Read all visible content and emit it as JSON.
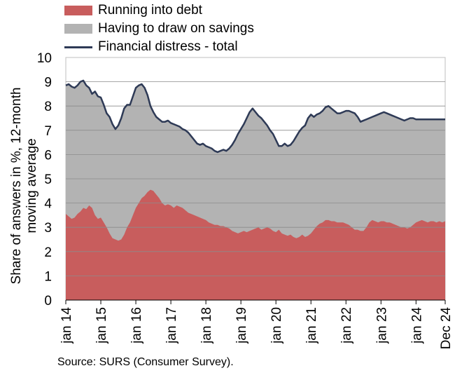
{
  "chart_data": {
    "type": "area",
    "ylabel": "Share of answers in %, 12-month moving average",
    "ylim": [
      0,
      10
    ],
    "yticks": [
      "0",
      "1",
      "2",
      "3",
      "4",
      "5",
      "6",
      "7",
      "8",
      "9",
      "10"
    ],
    "xticks": [
      "jan 14",
      "jan 15",
      "jan 16",
      "jan 17",
      "jan 18",
      "jan 19",
      "jan 20",
      "jan 21",
      "jan 22",
      "jan 23",
      "jan 24",
      "Dec 24"
    ],
    "grid": true,
    "legend_position": "top-left",
    "colors": {
      "debt": "#c85d5d",
      "savings": "#b3b3b3",
      "total": "#2e3a56"
    },
    "series": [
      {
        "name": "Running into debt",
        "kind": "area",
        "x": [
          0,
          1,
          2,
          3,
          4,
          5,
          6,
          7,
          8,
          9,
          10,
          11,
          12,
          13,
          14,
          15,
          16,
          17,
          18,
          19,
          20,
          21,
          22,
          23,
          24,
          25,
          26,
          27,
          28,
          29,
          30,
          31,
          32,
          33,
          34,
          35,
          36,
          37,
          38,
          39,
          40,
          41,
          42,
          43,
          44,
          45,
          46,
          47,
          48,
          49,
          50,
          51,
          52,
          53,
          54,
          55,
          56,
          57,
          58,
          59,
          60,
          61,
          62,
          63,
          64,
          65,
          66,
          67,
          68,
          69,
          70,
          71,
          72,
          73,
          74,
          75,
          76,
          77,
          78,
          79,
          80,
          81,
          82,
          83,
          84,
          85,
          86,
          87,
          88,
          89,
          90,
          91,
          92,
          93,
          94,
          95,
          96,
          97,
          98,
          99,
          100,
          101,
          102,
          103,
          104,
          105,
          106,
          107,
          108,
          109,
          110,
          111,
          112,
          113,
          114,
          115,
          116,
          117,
          118,
          119,
          120,
          121,
          122,
          123,
          124,
          125,
          126,
          127,
          128,
          129,
          130
        ],
        "values": [
          3.55,
          3.45,
          3.35,
          3.4,
          3.55,
          3.65,
          3.8,
          3.75,
          3.9,
          3.8,
          3.5,
          3.35,
          3.4,
          3.2,
          3.0,
          2.75,
          2.55,
          2.5,
          2.45,
          2.5,
          2.7,
          3.0,
          3.2,
          3.5,
          3.8,
          4.0,
          4.2,
          4.3,
          4.45,
          4.55,
          4.5,
          4.35,
          4.2,
          4.0,
          3.9,
          3.95,
          3.9,
          3.8,
          3.9,
          3.85,
          3.8,
          3.7,
          3.6,
          3.55,
          3.5,
          3.45,
          3.4,
          3.35,
          3.3,
          3.2,
          3.15,
          3.1,
          3.1,
          3.05,
          3.05,
          3.0,
          2.95,
          2.85,
          2.8,
          2.75,
          2.8,
          2.85,
          2.8,
          2.85,
          2.9,
          2.95,
          3.0,
          2.9,
          2.95,
          3.0,
          2.95,
          2.85,
          2.8,
          2.9,
          2.75,
          2.7,
          2.65,
          2.7,
          2.6,
          2.55,
          2.6,
          2.7,
          2.6,
          2.65,
          2.75,
          2.9,
          3.05,
          3.15,
          3.2,
          3.3,
          3.3,
          3.25,
          3.25,
          3.2,
          3.2,
          3.2,
          3.15,
          3.1,
          3.0,
          2.9,
          2.9,
          2.85,
          2.85,
          3.0,
          3.2,
          3.3,
          3.25,
          3.2,
          3.25,
          3.25,
          3.2,
          3.2,
          3.15,
          3.1,
          3.05,
          3.0,
          3.0,
          2.95,
          3.0,
          3.1,
          3.2,
          3.25,
          3.3,
          3.25,
          3.2,
          3.25,
          3.25,
          3.2,
          3.25,
          3.2,
          3.25
        ]
      },
      {
        "name": "Having to draw on savings",
        "kind": "area"
      },
      {
        "name": "Financial distress - total",
        "kind": "line",
        "x": [
          0,
          1,
          2,
          3,
          4,
          5,
          6,
          7,
          8,
          9,
          10,
          11,
          12,
          13,
          14,
          15,
          16,
          17,
          18,
          19,
          20,
          21,
          22,
          23,
          24,
          25,
          26,
          27,
          28,
          29,
          30,
          31,
          32,
          33,
          34,
          35,
          36,
          37,
          38,
          39,
          40,
          41,
          42,
          43,
          44,
          45,
          46,
          47,
          48,
          49,
          50,
          51,
          52,
          53,
          54,
          55,
          56,
          57,
          58,
          59,
          60,
          61,
          62,
          63,
          64,
          65,
          66,
          67,
          68,
          69,
          70,
          71,
          72,
          73,
          74,
          75,
          76,
          77,
          78,
          79,
          80,
          81,
          82,
          83,
          84,
          85,
          86,
          87,
          88,
          89,
          90,
          91,
          92,
          93,
          94,
          95,
          96,
          97,
          98,
          99,
          100,
          101,
          102,
          103,
          104,
          105,
          106,
          107,
          108,
          109,
          110,
          111,
          112,
          113,
          114,
          115,
          116,
          117,
          118,
          119,
          120,
          121,
          122,
          123,
          124,
          125,
          126,
          127,
          128,
          129,
          130
        ],
        "values": [
          8.85,
          8.9,
          8.8,
          8.75,
          8.85,
          9.0,
          9.05,
          8.85,
          8.75,
          8.5,
          8.6,
          8.4,
          8.35,
          8.05,
          7.7,
          7.55,
          7.25,
          7.05,
          7.2,
          7.5,
          7.9,
          8.05,
          8.05,
          8.4,
          8.75,
          8.85,
          8.9,
          8.75,
          8.45,
          8.0,
          7.75,
          7.55,
          7.45,
          7.35,
          7.35,
          7.4,
          7.3,
          7.25,
          7.2,
          7.15,
          7.05,
          7.0,
          6.9,
          6.75,
          6.6,
          6.45,
          6.4,
          6.45,
          6.35,
          6.3,
          6.25,
          6.15,
          6.1,
          6.15,
          6.2,
          6.15,
          6.25,
          6.4,
          6.6,
          6.85,
          7.05,
          7.25,
          7.5,
          7.75,
          7.9,
          7.75,
          7.6,
          7.5,
          7.35,
          7.2,
          7.0,
          6.85,
          6.6,
          6.35,
          6.35,
          6.45,
          6.35,
          6.4,
          6.55,
          6.75,
          6.95,
          7.1,
          7.2,
          7.5,
          7.65,
          7.55,
          7.65,
          7.7,
          7.8,
          7.95,
          8.0,
          7.9,
          7.8,
          7.7,
          7.7,
          7.75,
          7.8,
          7.8,
          7.75,
          7.7,
          7.55,
          7.35,
          7.4,
          7.45,
          7.5,
          7.55,
          7.6,
          7.65,
          7.7,
          7.75,
          7.7,
          7.65,
          7.6,
          7.55,
          7.5,
          7.45,
          7.4,
          7.45,
          7.5,
          7.5,
          7.45,
          7.45,
          7.45,
          7.45,
          7.45,
          7.45,
          7.45,
          7.45,
          7.45,
          7.45,
          7.45
        ]
      }
    ],
    "source": "Source: SURS (Consumer Survey)."
  }
}
